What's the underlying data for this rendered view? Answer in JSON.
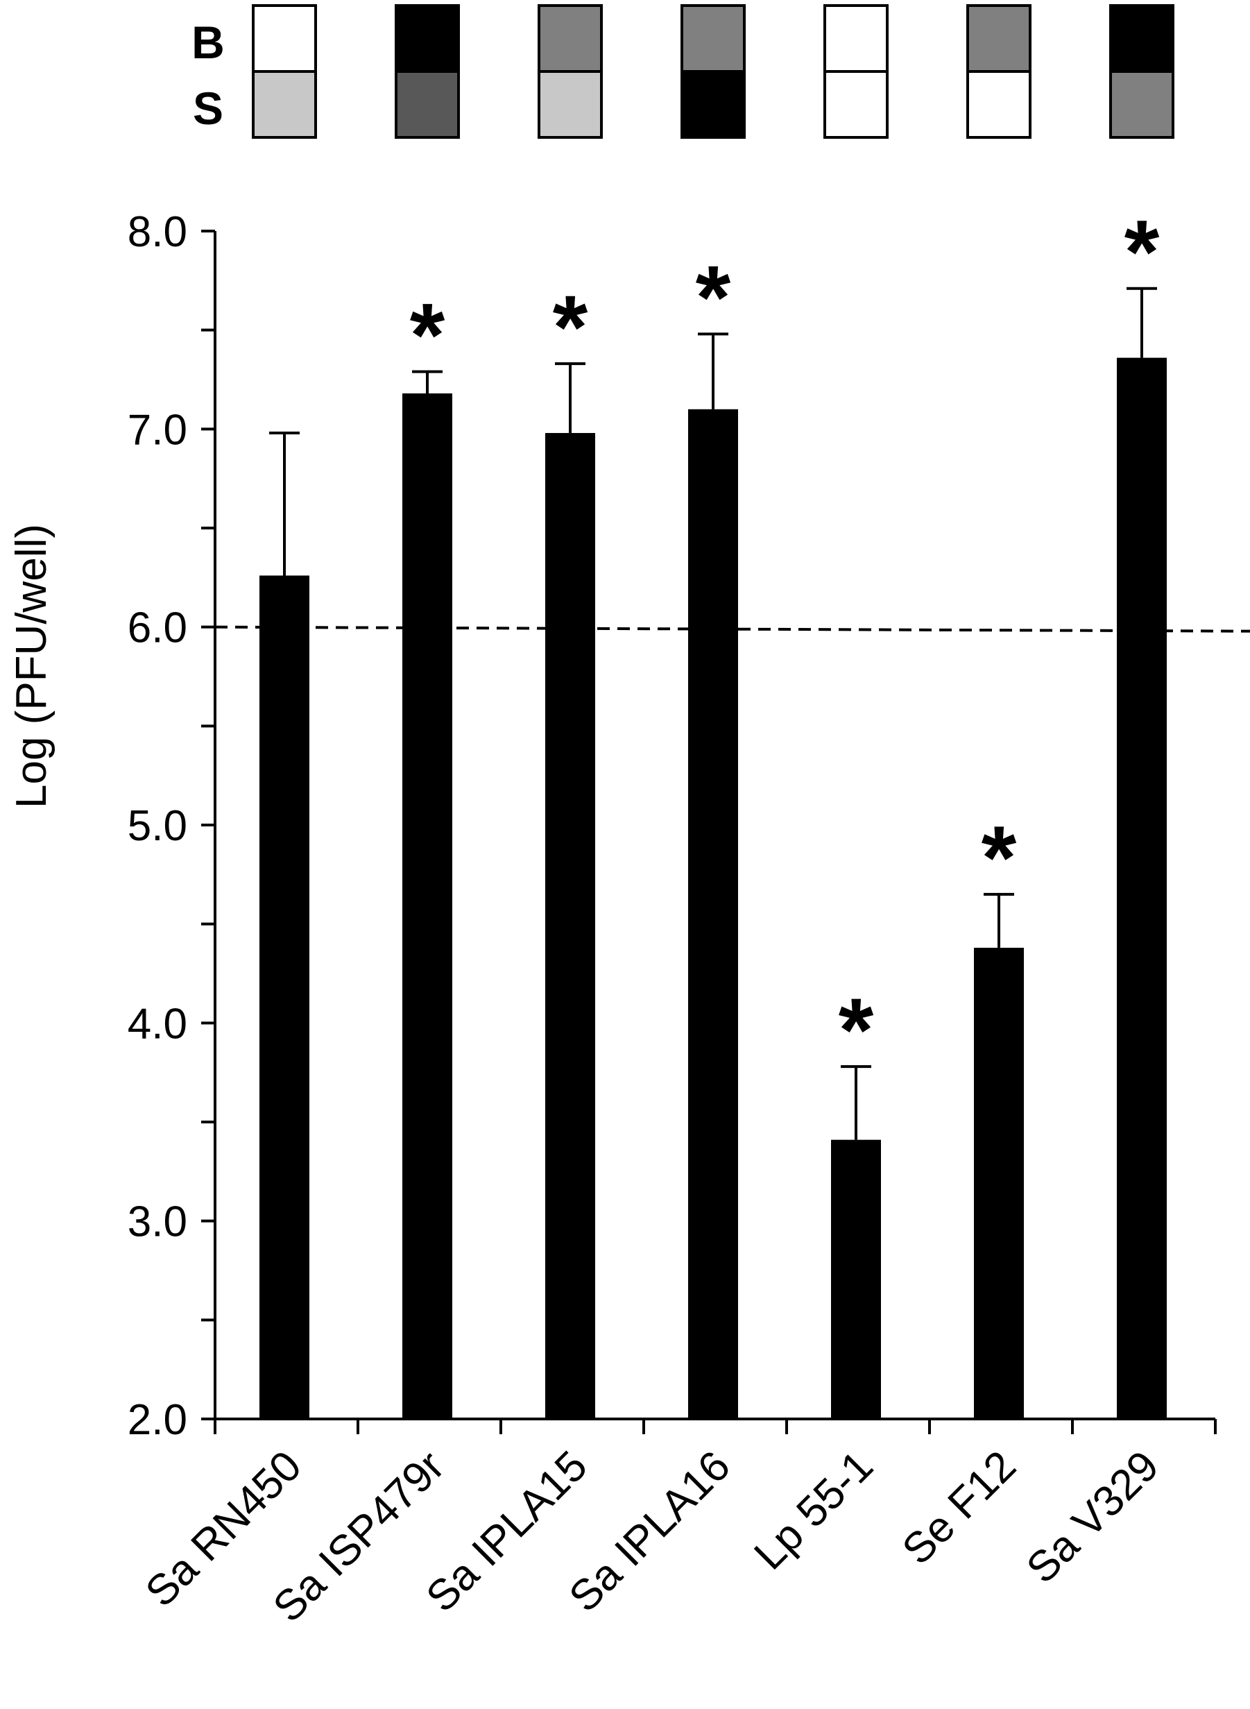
{
  "chart_data": {
    "type": "bar",
    "categories": [
      "Sa RN450",
      "Sa ISP479r",
      "Sa IPLA15",
      "Sa IPLA16",
      "Lp 55-1",
      "Se F12",
      "Sa V329"
    ],
    "series": [
      {
        "values": [
          6.26,
          7.18,
          6.98,
          7.1,
          3.41,
          4.38,
          7.36
        ],
        "errors": [
          0.72,
          0.11,
          0.35,
          0.38,
          0.37,
          0.27,
          0.35
        ],
        "significant": [
          false,
          true,
          true,
          true,
          true,
          true,
          true
        ],
        "color": "#000000"
      }
    ],
    "ylabel": "Log (PFU/well)",
    "xlabel": "",
    "ylim": [
      2.0,
      8.0
    ],
    "yticks": [
      "2.0",
      "3.0",
      "4.0",
      "5.0",
      "6.0",
      "7.0",
      "8.0"
    ],
    "minor_tick_step": 0.5,
    "reference_line": {
      "y": 6.0,
      "style": "dashed"
    },
    "significance_marker": "*",
    "grid": false,
    "legend": "none",
    "category_label_rotation": "-45deg",
    "indicator_rows": [
      {
        "label": "B",
        "shades": [
          "#ffffff",
          "#000000",
          "#808080",
          "#808080",
          "#ffffff",
          "#808080",
          "#000000"
        ]
      },
      {
        "label": "S",
        "shades": [
          "#c8c8c8",
          "#585858",
          "#c8c8c8",
          "#000000",
          "#ffffff",
          "#ffffff",
          "#808080"
        ]
      }
    ]
  }
}
